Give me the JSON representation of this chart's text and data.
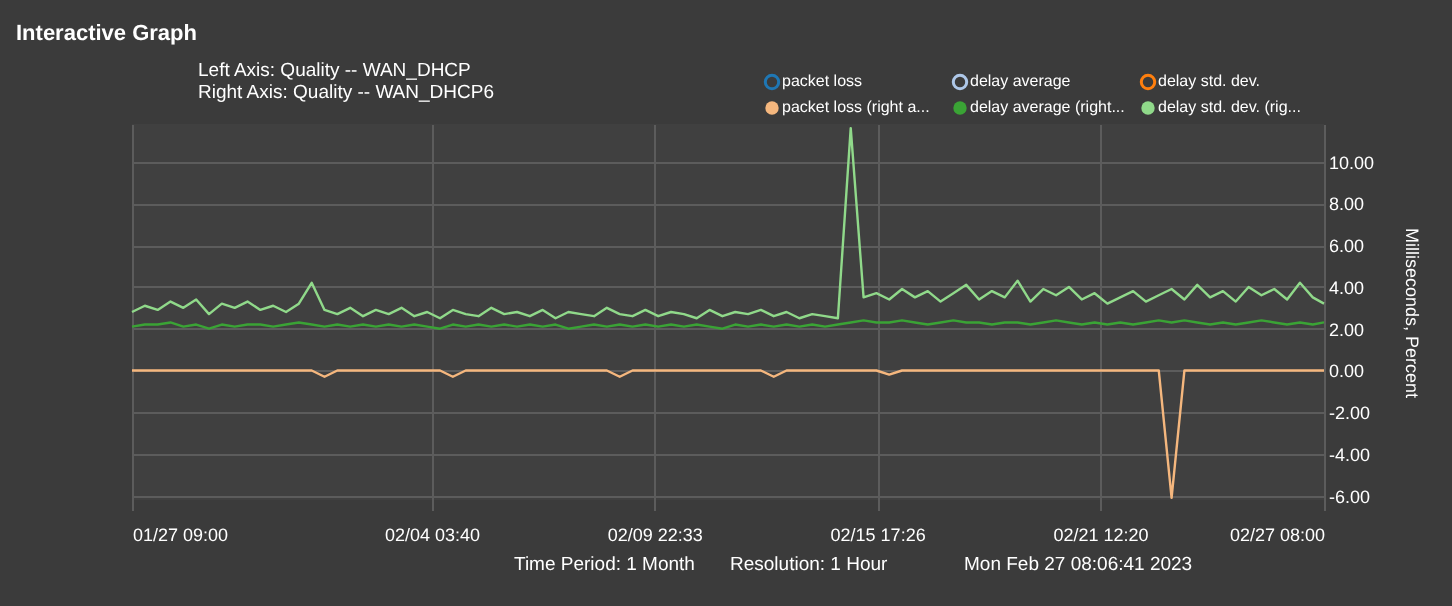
{
  "chart_data": {
    "type": "line",
    "title": "Interactive Graph",
    "ylabel": "Milliseconds, Percent",
    "annotations": [
      "Left Axis: Quality -- WAN_DHCP",
      "Right Axis: Quality -- WAN_DHCP6",
      "Time Period: 1 Month",
      "Resolution: 1 Hour",
      "Mon Feb 27 08:06:41 2023"
    ],
    "x": [
      "2023-01-27T09:00",
      "2023-01-27T17:00",
      "2023-01-28T01:00",
      "2023-01-28T09:00",
      "2023-01-28T17:00",
      "2023-01-29T01:00",
      "2023-01-29T09:00",
      "2023-01-29T17:00",
      "2023-01-30T01:00",
      "2023-01-30T09:00",
      "2023-01-30T17:00",
      "2023-01-31T01:00",
      "2023-01-31T09:00",
      "2023-01-31T17:00",
      "2023-02-01T01:00",
      "2023-02-01T09:00",
      "2023-02-01T17:00",
      "2023-02-02T01:00",
      "2023-02-02T09:00",
      "2023-02-02T17:00",
      "2023-02-03T01:00",
      "2023-02-03T09:00",
      "2023-02-03T17:00",
      "2023-02-04T01:00",
      "2023-02-04T09:00",
      "2023-02-04T17:00",
      "2023-02-05T01:00",
      "2023-02-05T09:00",
      "2023-02-05T17:00",
      "2023-02-06T01:00",
      "2023-02-06T09:00",
      "2023-02-06T17:00",
      "2023-02-07T01:00",
      "2023-02-07T09:00",
      "2023-02-07T17:00",
      "2023-02-08T01:00",
      "2023-02-08T09:00",
      "2023-02-08T17:00",
      "2023-02-09T01:00",
      "2023-02-09T09:00",
      "2023-02-09T17:00",
      "2023-02-10T01:00",
      "2023-02-10T09:00",
      "2023-02-10T17:00",
      "2023-02-11T01:00",
      "2023-02-11T09:00",
      "2023-02-11T17:00",
      "2023-02-12T01:00",
      "2023-02-12T09:00",
      "2023-02-12T17:00",
      "2023-02-13T01:00",
      "2023-02-13T09:00",
      "2023-02-13T17:00",
      "2023-02-14T01:00",
      "2023-02-14T09:00",
      "2023-02-14T17:00",
      "2023-02-15T01:00",
      "2023-02-15T09:00",
      "2023-02-15T17:00",
      "2023-02-16T01:00",
      "2023-02-16T09:00",
      "2023-02-16T17:00",
      "2023-02-17T01:00",
      "2023-02-17T09:00",
      "2023-02-17T17:00",
      "2023-02-18T01:00",
      "2023-02-18T09:00",
      "2023-02-18T17:00",
      "2023-02-19T01:00",
      "2023-02-19T09:00",
      "2023-02-19T17:00",
      "2023-02-20T01:00",
      "2023-02-20T09:00",
      "2023-02-20T17:00",
      "2023-02-21T01:00",
      "2023-02-21T09:00",
      "2023-02-21T17:00",
      "2023-02-22T01:00",
      "2023-02-22T09:00",
      "2023-02-22T17:00",
      "2023-02-23T01:00",
      "2023-02-23T09:00",
      "2023-02-23T17:00",
      "2023-02-24T01:00",
      "2023-02-24T09:00",
      "2023-02-24T17:00",
      "2023-02-25T01:00",
      "2023-02-25T09:00",
      "2023-02-25T17:00",
      "2023-02-26T01:00",
      "2023-02-26T09:00",
      "2023-02-26T17:00",
      "2023-02-27T01:00",
      "2023-02-27T08:00"
    ],
    "xlim": [
      "2023-01-27T09:00",
      "2023-02-27T08:00"
    ],
    "xticks": [
      {
        "value": "2023-01-27T09:00",
        "label": "01/27 09:00"
      },
      {
        "value": "2023-02-04T03:40",
        "label": "02/04 03:40"
      },
      {
        "value": "2023-02-09T22:33",
        "label": "02/09 22:33"
      },
      {
        "value": "2023-02-15T17:26",
        "label": "02/15 17:26"
      },
      {
        "value": "2023-02-21T12:20",
        "label": "02/21 12:20"
      },
      {
        "value": "2023-02-27T08:00",
        "label": "02/27 08:00"
      }
    ],
    "ylim": [
      -6.2,
      11.8
    ],
    "yticks": [
      {
        "value": 10,
        "label": "10.00"
      },
      {
        "value": 8,
        "label": "8.00"
      },
      {
        "value": 6,
        "label": "6.00"
      },
      {
        "value": 4,
        "label": "4.00"
      },
      {
        "value": 2,
        "label": "2.00"
      },
      {
        "value": 0,
        "label": "0.00"
      },
      {
        "value": -2,
        "label": "-2.00"
      },
      {
        "value": -4,
        "label": "-4.00"
      },
      {
        "value": -6,
        "label": "-6.00"
      }
    ],
    "grid": true,
    "legend": "top right",
    "line_style": "solid",
    "marker": "none",
    "series": [
      {
        "name": "packet loss",
        "color": "#1f77b4",
        "values": [
          null,
          null,
          null,
          null,
          null,
          null,
          null,
          null,
          null,
          null,
          null,
          null,
          null,
          null,
          null,
          null,
          null,
          null,
          null,
          null,
          null,
          null,
          null,
          null,
          null,
          null,
          null,
          null,
          null,
          null,
          null,
          null,
          null,
          null,
          null,
          null,
          null,
          null,
          null,
          null,
          null,
          null,
          null,
          null,
          null,
          null,
          null,
          null,
          null,
          null,
          null,
          null,
          null,
          null,
          null,
          null,
          null,
          null,
          null,
          null,
          null,
          null,
          null,
          null,
          null,
          null,
          null,
          null,
          null,
          null,
          null,
          null,
          null,
          null,
          null,
          null,
          null,
          null,
          null,
          null,
          null,
          null,
          null,
          null,
          null,
          null,
          null,
          null,
          null,
          null,
          null,
          null,
          null,
          null
        ]
      },
      {
        "name": "delay average",
        "color": "#aec7e8",
        "values": [
          null,
          null,
          null,
          null,
          null,
          null,
          null,
          null,
          null,
          null,
          null,
          null,
          null,
          null,
          null,
          null,
          null,
          null,
          null,
          null,
          null,
          null,
          null,
          null,
          null,
          null,
          null,
          null,
          null,
          null,
          null,
          null,
          null,
          null,
          null,
          null,
          null,
          null,
          null,
          null,
          null,
          null,
          null,
          null,
          null,
          null,
          null,
          null,
          null,
          null,
          null,
          null,
          null,
          null,
          null,
          null,
          null,
          null,
          null,
          null,
          null,
          null,
          null,
          null,
          null,
          null,
          null,
          null,
          null,
          null,
          null,
          null,
          null,
          null,
          null,
          null,
          null,
          null,
          null,
          null,
          null,
          null,
          null,
          null,
          null,
          null,
          null,
          null,
          null,
          null,
          null,
          null,
          null,
          null
        ]
      },
      {
        "name": "delay std. dev.",
        "color": "#ff7f0e",
        "values": [
          null,
          null,
          null,
          null,
          null,
          null,
          null,
          null,
          null,
          null,
          null,
          null,
          null,
          null,
          null,
          null,
          null,
          null,
          null,
          null,
          null,
          null,
          null,
          null,
          null,
          null,
          null,
          null,
          null,
          null,
          null,
          null,
          null,
          null,
          null,
          null,
          null,
          null,
          null,
          null,
          null,
          null,
          null,
          null,
          null,
          null,
          null,
          null,
          null,
          null,
          null,
          null,
          null,
          null,
          null,
          null,
          null,
          null,
          null,
          null,
          null,
          null,
          null,
          null,
          null,
          null,
          null,
          null,
          null,
          null,
          null,
          null,
          null,
          null,
          null,
          null,
          null,
          null,
          null,
          null,
          null,
          null,
          null,
          null,
          null,
          null,
          null,
          null,
          null,
          null,
          null,
          null,
          null,
          null
        ]
      },
      {
        "name": "packet loss (right a...",
        "color": "#f5b77e",
        "values": [
          0,
          0,
          0,
          0,
          0,
          0,
          0,
          0,
          0,
          0,
          0,
          0,
          0,
          0,
          0,
          -0.3,
          0,
          0,
          0,
          0,
          0,
          0,
          0,
          0,
          0,
          -0.3,
          0,
          0,
          0,
          0,
          0,
          0,
          0,
          0,
          0,
          0,
          0,
          0,
          -0.3,
          0,
          0,
          0,
          0,
          0,
          0,
          0,
          0,
          0,
          0,
          0,
          -0.3,
          0,
          0,
          0,
          0,
          0,
          0,
          0,
          0,
          -0.2,
          0,
          0,
          0,
          0,
          0,
          0,
          0,
          0,
          0,
          0,
          0,
          0,
          0,
          0,
          0,
          0,
          0,
          0,
          0,
          0,
          0,
          -6.1,
          0,
          0,
          0,
          0,
          0,
          0,
          0,
          0,
          0,
          0,
          0,
          0
        ]
      },
      {
        "name": "delay average (right...",
        "color": "#3aa335",
        "values": [
          2.1,
          2.2,
          2.2,
          2.3,
          2.1,
          2.2,
          2.0,
          2.2,
          2.1,
          2.2,
          2.2,
          2.1,
          2.2,
          2.3,
          2.2,
          2.1,
          2.2,
          2.1,
          2.2,
          2.1,
          2.2,
          2.1,
          2.2,
          2.1,
          2.0,
          2.2,
          2.1,
          2.2,
          2.1,
          2.2,
          2.1,
          2.2,
          2.1,
          2.2,
          2.0,
          2.1,
          2.2,
          2.1,
          2.2,
          2.1,
          2.2,
          2.1,
          2.2,
          2.1,
          2.2,
          2.1,
          2.0,
          2.2,
          2.1,
          2.2,
          2.1,
          2.2,
          2.1,
          2.2,
          2.1,
          2.2,
          2.3,
          2.4,
          2.3,
          2.3,
          2.4,
          2.3,
          2.2,
          2.3,
          2.4,
          2.3,
          2.3,
          2.2,
          2.3,
          2.3,
          2.2,
          2.3,
          2.4,
          2.3,
          2.2,
          2.3,
          2.2,
          2.3,
          2.2,
          2.3,
          2.4,
          2.3,
          2.4,
          2.3,
          2.2,
          2.3,
          2.2,
          2.3,
          2.4,
          2.3,
          2.2,
          2.3,
          2.2,
          2.3
        ]
      },
      {
        "name": "delay std. dev. (rig...",
        "color": "#90d98a",
        "values": [
          2.8,
          3.1,
          2.9,
          3.3,
          3.0,
          3.4,
          2.7,
          3.2,
          3.0,
          3.3,
          2.9,
          3.1,
          2.8,
          3.2,
          4.2,
          2.9,
          2.7,
          3.0,
          2.6,
          2.9,
          2.7,
          3.0,
          2.6,
          2.8,
          2.5,
          2.9,
          2.7,
          2.6,
          3.0,
          2.7,
          2.8,
          2.6,
          2.9,
          2.5,
          2.8,
          2.7,
          2.6,
          3.0,
          2.7,
          2.6,
          2.9,
          2.6,
          2.8,
          2.7,
          2.5,
          2.9,
          2.6,
          2.8,
          2.7,
          2.9,
          2.6,
          2.8,
          2.5,
          2.7,
          2.6,
          2.5,
          11.6,
          3.5,
          3.7,
          3.4,
          3.9,
          3.5,
          3.8,
          3.3,
          3.7,
          4.1,
          3.4,
          3.8,
          3.5,
          4.3,
          3.3,
          3.9,
          3.6,
          4.0,
          3.4,
          3.7,
          3.2,
          3.5,
          3.8,
          3.3,
          3.6,
          3.9,
          3.4,
          4.1,
          3.5,
          3.8,
          3.3,
          4.0,
          3.6,
          3.9,
          3.4,
          4.2,
          3.5,
          3.2
        ]
      }
    ]
  }
}
